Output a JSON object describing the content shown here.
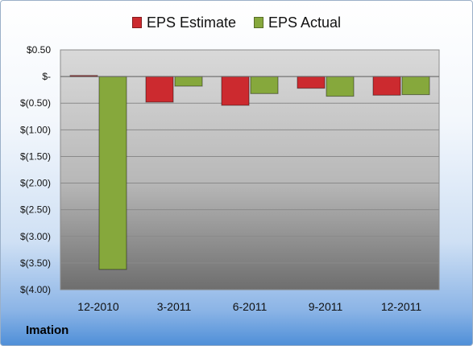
{
  "company": "Imation",
  "colors": {
    "estimate": "#cc2a2f",
    "actual": "#86a83c"
  },
  "chart_data": {
    "type": "bar",
    "categories": [
      "12-2010",
      "3-2011",
      "6-2011",
      "9-2011",
      "12-2011"
    ],
    "series": [
      {
        "name": "EPS Estimate",
        "values": [
          0.02,
          -0.48,
          -0.54,
          -0.22,
          -0.35
        ]
      },
      {
        "name": "EPS Actual",
        "values": [
          -3.62,
          -0.18,
          -0.32,
          -0.37,
          -0.34
        ]
      }
    ],
    "yticks": [
      "$0.50",
      "$-",
      "$(0.50)",
      "$(1.00)",
      "$(1.50)",
      "$(2.00)",
      "$(2.50)",
      "$(3.00)",
      "$(3.50)",
      "$(4.00)"
    ],
    "ylim": [
      -4.0,
      0.5
    ],
    "grid": true,
    "legend_position": "top-center"
  }
}
